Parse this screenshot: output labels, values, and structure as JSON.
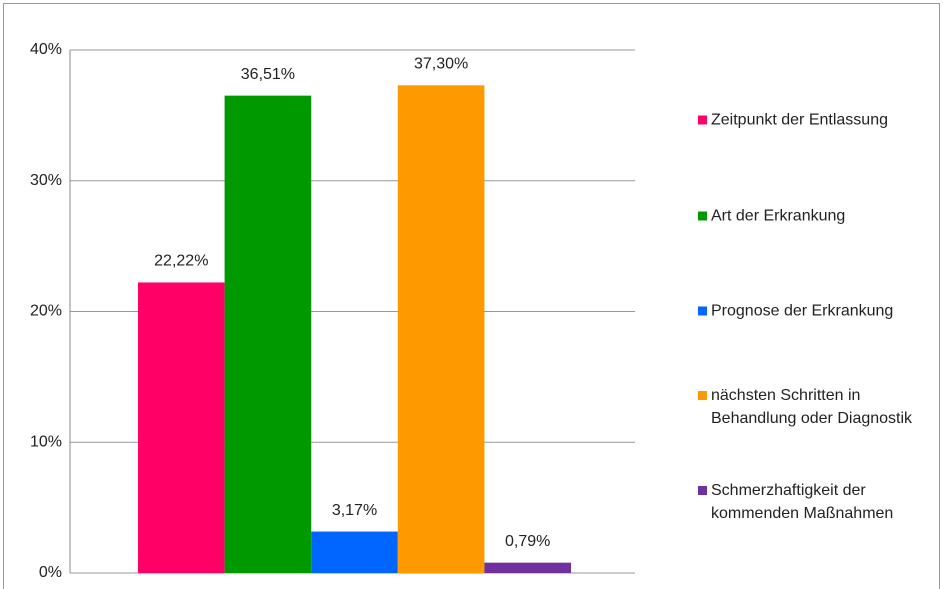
{
  "chart_data": {
    "type": "bar",
    "ylim": [
      0,
      40
    ],
    "yticks": [
      {
        "value": 0,
        "label": "0%"
      },
      {
        "value": 10,
        "label": "10%"
      },
      {
        "value": 20,
        "label": "20%"
      },
      {
        "value": 30,
        "label": "30%"
      },
      {
        "value": 40,
        "label": "40%"
      }
    ],
    "grid": true,
    "legend": "right",
    "series": [
      {
        "name": "Zeitpunkt der Entlassung",
        "color": "#ff0066",
        "values": [
          22.22
        ],
        "value_labels": [
          "22,22%"
        ]
      },
      {
        "name": "Art der Erkrankung",
        "color": "#009900",
        "values": [
          36.51
        ],
        "value_labels": [
          "36,51%"
        ]
      },
      {
        "name": "Prognose der Erkrankung",
        "color": "#0066ff",
        "values": [
          3.17
        ],
        "value_labels": [
          "3,17%"
        ]
      },
      {
        "name": "nächsten Schritten in Behandlung oder Diagnostik",
        "color": "#ff9900",
        "values": [
          37.3
        ],
        "value_labels": [
          "37,30%"
        ]
      },
      {
        "name": "Schmerzhaftigkeit der kommenden Maßnahmen",
        "color": "#7030a0",
        "values": [
          0.79
        ],
        "value_labels": [
          "0,79%"
        ]
      }
    ]
  }
}
